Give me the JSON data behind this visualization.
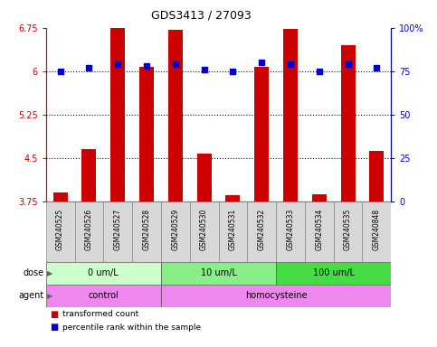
{
  "title": "GDS3413 / 27093",
  "samples": [
    "GSM240525",
    "GSM240526",
    "GSM240527",
    "GSM240528",
    "GSM240529",
    "GSM240530",
    "GSM240531",
    "GSM240532",
    "GSM240533",
    "GSM240534",
    "GSM240535",
    "GSM240848"
  ],
  "transformed_counts": [
    3.9,
    4.65,
    6.75,
    6.07,
    6.72,
    4.57,
    3.85,
    6.07,
    6.73,
    3.87,
    6.45,
    4.62
  ],
  "percentile_ranks": [
    75,
    77,
    79,
    78,
    79,
    76,
    75,
    80,
    79,
    75,
    79,
    77
  ],
  "bar_color": "#cc0000",
  "dot_color": "#0000cc",
  "ylim_left": [
    3.75,
    6.75
  ],
  "ylim_right": [
    0,
    100
  ],
  "yticks_left": [
    3.75,
    4.5,
    5.25,
    6.0,
    6.75
  ],
  "yticks_right": [
    0,
    25,
    50,
    75,
    100
  ],
  "ytick_labels_left": [
    "3.75",
    "4.5",
    "5.25",
    "6",
    "6.75"
  ],
  "ytick_labels_right": [
    "0",
    "25",
    "50",
    "75",
    "100%"
  ],
  "grid_values": [
    4.5,
    5.25,
    6.0
  ],
  "dose_groups": [
    {
      "label": "0 um/L",
      "start": 0,
      "end": 4,
      "color": "#ccffcc"
    },
    {
      "label": "10 um/L",
      "start": 4,
      "end": 8,
      "color": "#88ee88"
    },
    {
      "label": "100 um/L",
      "start": 8,
      "end": 12,
      "color": "#44dd44"
    }
  ],
  "agent_groups": [
    {
      "label": "control",
      "start": 0,
      "end": 4,
      "color": "#ee88ee"
    },
    {
      "label": "homocysteine",
      "start": 4,
      "end": 12,
      "color": "#ee88ee"
    }
  ],
  "legend_items": [
    {
      "label": "transformed count",
      "color": "#cc0000"
    },
    {
      "label": "percentile rank within the sample",
      "color": "#0000cc"
    }
  ],
  "bar_bottom": 3.75,
  "left_axis_color": "#cc0000",
  "right_axis_color": "#0000cc",
  "bg_color": "#ffffff"
}
